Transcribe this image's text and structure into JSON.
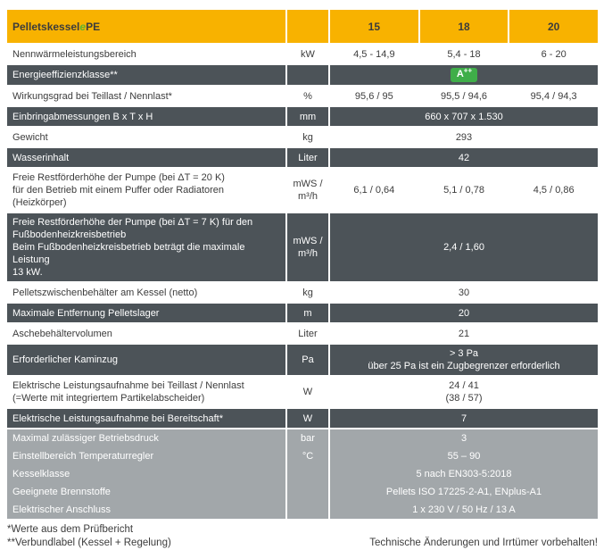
{
  "colors": {
    "header_yellow": "#F8B200",
    "row_dark_gray": "#4C5358",
    "block_light_gray": "#A2A7AA",
    "badge_green": "#3FAE49",
    "title_e_green": "#5CB531"
  },
  "table": {
    "header": {
      "title_prefix": "Pelletskessel ",
      "title_e": "e",
      "title_suffix": "PE",
      "cols": [
        "15",
        "18",
        "20"
      ]
    },
    "rows": [
      {
        "label": "Nennwärmeleistungsbereich",
        "unit": "kW",
        "style": "light",
        "values": [
          "4,5 - 14,9",
          "5,4 - 18",
          "6 - 20"
        ]
      },
      {
        "label": "Energieeffizienzklasse**",
        "unit": "",
        "style": "dark",
        "merged": "A++",
        "badge": true
      },
      {
        "label": "Wirkungsgrad bei Teillast / Nennlast*",
        "unit": "%",
        "style": "light",
        "values": [
          "95,6 / 95",
          "95,5 / 94,6",
          "95,4 / 94,3"
        ]
      },
      {
        "label": "Einbringabmessungen B x T x H",
        "unit": "mm",
        "style": "dark",
        "merged": "660 x 707 x 1.530"
      },
      {
        "label": "Gewicht",
        "unit": "kg",
        "style": "light",
        "merged": "293"
      },
      {
        "label": "Wasserinhalt",
        "unit": "Liter",
        "style": "dark",
        "merged": "42"
      },
      {
        "label": "Freie Restförderhöhe der Pumpe (bei ΔT = 20 K)\nfür den Betrieb mit einem Puffer oder Radiatoren\n(Heizkörper)",
        "unit": "mWS /\nm³/h",
        "style": "light",
        "values": [
          "6,1 / 0,64",
          "5,1 / 0,78",
          "4,5 / 0,86"
        ]
      },
      {
        "label": "Freie Restförderhöhe der Pumpe (bei ΔT = 7 K) für den\nFußbodenheizkreisbetrieb\nBeim Fußbodenheizkreisbetrieb beträgt die maximale Leistung\n13 kW.",
        "unit": "mWS /\nm³/h",
        "style": "dark",
        "merged": "2,4 / 1,60"
      },
      {
        "label": "Pelletszwischenbehälter am Kessel (netto)",
        "unit": "kg",
        "style": "light",
        "merged": "30"
      },
      {
        "label": "Maximale Entfernung Pelletslager",
        "unit": "m",
        "style": "dark",
        "merged": "20"
      },
      {
        "label": "Aschebehältervolumen",
        "unit": "Liter",
        "style": "light",
        "merged": "21"
      },
      {
        "label": "Erforderlicher Kaminzug",
        "unit": "Pa",
        "style": "dark",
        "merged": "> 3 Pa\nüber 25 Pa ist ein Zugbegrenzer erforderlich"
      },
      {
        "label": "Elektrische Leistungsaufnahme bei Teillast / Nennlast\n(=Werte mit integriertem Partikelabscheider)",
        "unit": "W",
        "style": "light",
        "merged": "24 / 41\n(38 / 57)"
      },
      {
        "label": "Elektrische Leistungsaufnahme bei Bereitschaft*",
        "unit": "W",
        "style": "dark",
        "merged": "7"
      },
      {
        "label": "Maximal zulässiger Betriebsdruck",
        "unit": "bar",
        "style": "gray",
        "merged": "3"
      },
      {
        "label": "Einstellbereich Temperaturregler",
        "unit": "°C",
        "style": "gray",
        "merged": "55 – 90"
      },
      {
        "label": "Kesselklasse",
        "unit": "",
        "style": "gray",
        "merged": "5 nach EN303-5:2018"
      },
      {
        "label": "Geeignete Brennstoffe",
        "unit": "",
        "style": "gray",
        "merged": "Pellets ISO 17225-2-A1, ENplus-A1"
      },
      {
        "label": "Elektrischer Anschluss",
        "unit": "",
        "style": "gray",
        "merged": "1 x 230 V / 50 Hz / 13 A"
      }
    ]
  },
  "footer": {
    "note1": "*Werte aus dem Prüfbericht",
    "note2": "**Verbundlabel (Kessel + Regelung)",
    "disclaimer": "Technische Änderungen und Irrtümer vorbehalten!"
  }
}
